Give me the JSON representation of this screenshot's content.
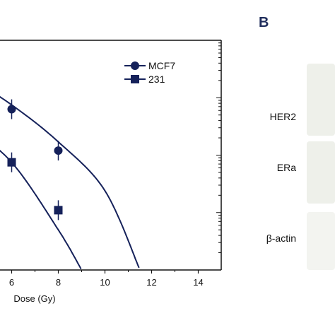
{
  "panel_b_label": "B",
  "blot_labels": [
    "HER2",
    "ERa",
    "β-actin"
  ],
  "colors": {
    "series": "#15215a",
    "blot_band": "#eef0ea"
  },
  "chart_data": {
    "type": "scatter",
    "title": "",
    "xlabel": "Dose (Gy)",
    "ylabel": "",
    "xlim": [
      0,
      15
    ],
    "x_ticks": [
      6,
      8,
      10,
      12,
      14
    ],
    "y_scale": "log",
    "ylim": [
      0.0001,
      1
    ],
    "legend": {
      "placement": "top-right",
      "entries": [
        "MCF7",
        "231"
      ]
    },
    "series": [
      {
        "name": "MCF7",
        "marker": "circle",
        "points": [
          {
            "x": 6,
            "y": 0.063
          },
          {
            "x": 8,
            "y": 0.012
          }
        ],
        "fit_curve": [
          [
            4,
            0.25
          ],
          [
            6,
            0.075
          ],
          [
            8,
            0.017
          ],
          [
            10,
            0.0024
          ],
          [
            11.5,
            0.0001
          ]
        ]
      },
      {
        "name": "231",
        "marker": "square",
        "points": [
          {
            "x": 6,
            "y": 0.0075
          },
          {
            "x": 8,
            "y": 0.0011
          }
        ],
        "fit_curve": [
          [
            4,
            0.035
          ],
          [
            6,
            0.0075
          ],
          [
            8,
            0.0005
          ],
          [
            9,
            0.0001
          ]
        ]
      }
    ]
  }
}
